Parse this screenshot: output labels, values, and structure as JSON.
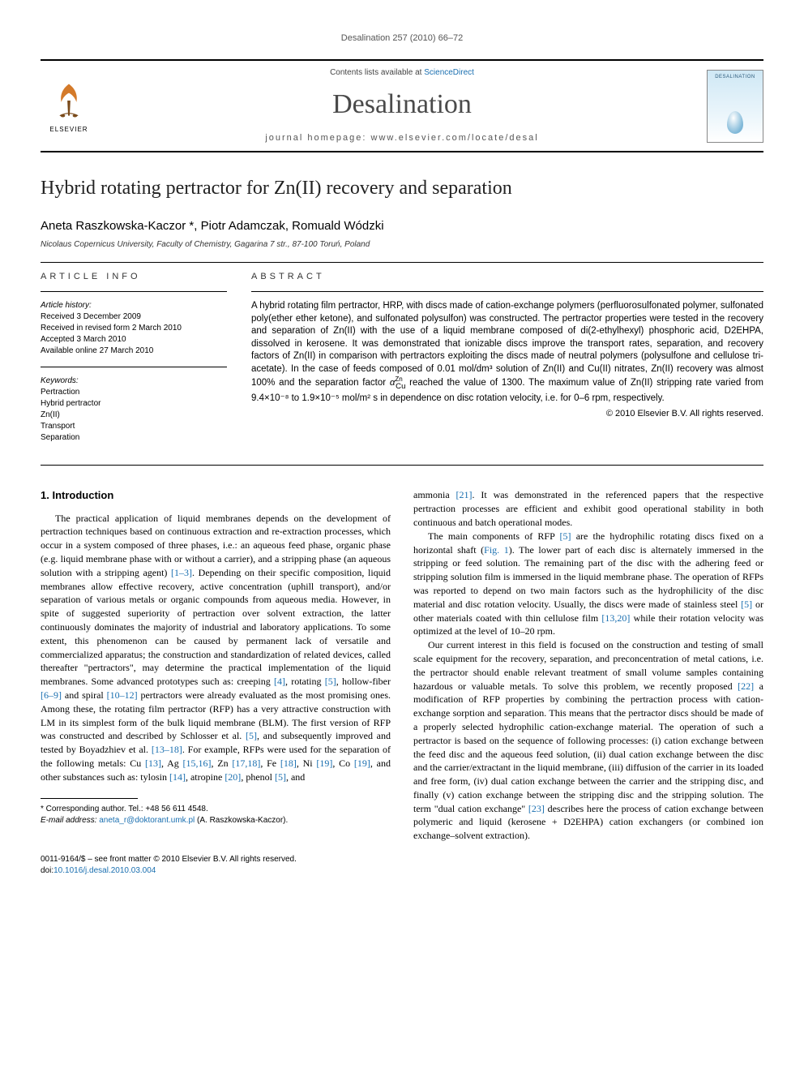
{
  "running_head": "Desalination 257 (2010) 66–72",
  "masthead": {
    "contents_prefix": "Contents lists available at ",
    "contents_link": "ScienceDirect",
    "journal": "Desalination",
    "homepage_label": "journal homepage: ",
    "homepage_url": "www.elsevier.com/locate/desal",
    "elsevier": "ELSEVIER",
    "cover_label": "DESALINATION"
  },
  "title": "Hybrid rotating pertractor for Zn(II) recovery and separation",
  "authors_html": "Aneta Raszkowska-Kaczor *, Piotr Adamczak, Romuald Wódzki",
  "authors": [
    {
      "name": "Aneta Raszkowska-Kaczor",
      "corresponding": true
    },
    {
      "name": "Piotr Adamczak"
    },
    {
      "name": "Romuald Wódzki"
    }
  ],
  "affiliation": "Nicolaus Copernicus University, Faculty of Chemistry, Gagarina 7 str., 87-100 Toruń, Poland",
  "info": {
    "heading": "article info",
    "history_label": "Article history:",
    "received": "Received 3 December 2009",
    "revised": "Received in revised form 2 March 2010",
    "accepted": "Accepted 3 March 2010",
    "online": "Available online 27 March 2010",
    "keywords_label": "Keywords:",
    "keywords": [
      "Pertraction",
      "Hybrid pertractor",
      "Zn(II)",
      "Transport",
      "Separation"
    ]
  },
  "abstract": {
    "heading": "abstract",
    "text": "A hybrid rotating film pertractor, HRP, with discs made of cation-exchange polymers (perfluorosulfonated polymer, sulfonated poly(ether ether ketone), and sulfonated polysulfon) was constructed. The pertractor properties were tested in the recovery and separation of Zn(II) with the use of a liquid membrane composed of di(2-ethylhexyl) phosphoric acid, D2EHPA, dissolved in kerosene. It was demonstrated that ionizable discs improve the transport rates, separation, and recovery factors of Zn(II) in comparison with pertractors exploiting the discs made of neutral polymers (polysulfone and cellulose tri-acetate). In the case of feeds composed of 0.01 mol/dm³ solution of Zn(II) and Cu(II) nitrates, Zn(II) recovery was almost 100% and the separation factor α(Zn/Cu) reached the value of 1300. The maximum value of Zn(II) stripping rate varied from 9.4×10⁻⁸ to 1.9×10⁻⁵ mol/m² s in dependence on disc rotation velocity, i.e. for 0–6 rpm, respectively.",
    "copyright": "© 2010 Elsevier B.V. All rights reserved."
  },
  "section1": {
    "heading": "1. Introduction",
    "p1": "The practical application of liquid membranes depends on the development of pertraction techniques based on continuous extraction and re-extraction processes, which occur in a system composed of three phases, i.e.: an aqueous feed phase, organic phase (e.g. liquid membrane phase with or without a carrier), and a stripping phase (an aqueous solution with a stripping agent) [1–3]. Depending on their specific composition, liquid membranes allow effective recovery, active concentration (uphill transport), and/or separation of various metals or organic compounds from aqueous media. However, in spite of suggested superiority of pertraction over solvent extraction, the latter continuously dominates the majority of industrial and laboratory applications. To some extent, this phenomenon can be caused by permanent lack of versatile and commercialized apparatus; the construction and standardization of related devices, called thereafter \"pertractors\", may determine the practical implementation of the liquid membranes. Some advanced prototypes such as: creeping [4], rotating [5], hollow-fiber [6–9] and spiral [10–12] pertractors were already evaluated as the most promising ones. Among these, the rotating film pertractor (RFP) has a very attractive construction with LM in its simplest form of the bulk liquid membrane (BLM). The first version of RFP was constructed and described by Schlosser et al. [5], and subsequently improved and tested by Boyadzhiev et al. [13–18]. For example, RFPs were used for the separation of the following metals: Cu [13], Ag [15,16], Zn [17,18], Fe [18], Ni [19], Co [19], and other substances such as: tylosin [14], atropine [20], phenol [5], and",
    "p2": "ammonia [21]. It was demonstrated in the referenced papers that the respective pertraction processes are efficient and exhibit good operational stability in both continuous and batch operational modes.",
    "p3": "The main components of RFP [5] are the hydrophilic rotating discs fixed on a horizontal shaft (Fig. 1). The lower part of each disc is alternately immersed in the stripping or feed solution. The remaining part of the disc with the adhering feed or stripping solution film is immersed in the liquid membrane phase. The operation of RFPs was reported to depend on two main factors such as the hydrophilicity of the disc material and disc rotation velocity. Usually, the discs were made of stainless steel [5] or other materials coated with thin cellulose film [13,20] while their rotation velocity was optimized at the level of 10–20 rpm.",
    "p4": "Our current interest in this field is focused on the construction and testing of small scale equipment for the recovery, separation, and preconcentration of metal cations, i.e. the pertractor should enable relevant treatment of small volume samples containing hazardous or valuable metals. To solve this problem, we recently proposed [22] a modification of RFP properties by combining the pertraction process with cation-exchange sorption and separation. This means that the pertractor discs should be made of a properly selected hydrophilic cation-exchange material. The operation of such a pertractor is based on the sequence of following processes: (i) cation exchange between the feed disc and the aqueous feed solution, (ii) dual cation exchange between the disc and the carrier/extractant in the liquid membrane, (iii) diffusion of the carrier in its loaded and free form, (iv) dual cation exchange between the carrier and the stripping disc, and finally (v) cation exchange between the stripping disc and the stripping solution. The term \"dual cation exchange\" [23] describes here the process of cation exchange between polymeric and liquid (kerosene + D2EHPA) cation exchangers (or combined ion exchange–solvent extraction)."
  },
  "footnotes": {
    "corr": "* Corresponding author. Tel.: +48 56 611 4548.",
    "email_label": "E-mail address: ",
    "email": "aneta_r@doktorant.umk.pl",
    "email_suffix": " (A. Raszkowska-Kaczor)."
  },
  "footer": {
    "line1": "0011-9164/$ – see front matter © 2010 Elsevier B.V. All rights reserved.",
    "doi_prefix": "doi:",
    "doi": "10.1016/j.desal.2010.03.004"
  },
  "colors": {
    "link": "#1a6fb0",
    "text": "#000000",
    "muted": "#555555",
    "rule": "#000000"
  }
}
